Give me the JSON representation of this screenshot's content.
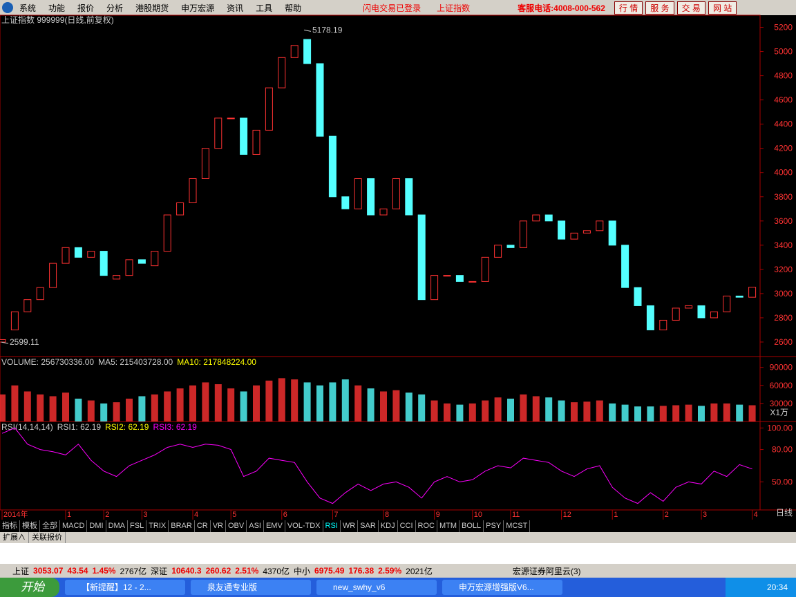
{
  "menu": {
    "items": [
      "系统",
      "功能",
      "报价",
      "分析",
      "港股期货",
      "申万宏源",
      "资讯",
      "工具",
      "帮助"
    ],
    "status": "闪电交易已登录",
    "index": "上证指数",
    "hotline": "客服电话:4008-000-562",
    "buttons": [
      "行 情",
      "服 务",
      "交 易",
      "网 站"
    ]
  },
  "chart_data": [
    {
      "type": "candlestick",
      "title": "上证指数 999999(日线,前复权)",
      "categories": [
        "2014年",
        null,
        null,
        null,
        null,
        "1",
        null,
        null,
        "2",
        null,
        null,
        "3",
        null,
        null,
        null,
        "4",
        null,
        null,
        "5",
        null,
        null,
        null,
        "6",
        null,
        null,
        null,
        "7",
        null,
        null,
        null,
        "8",
        null,
        null,
        null,
        "9",
        null,
        null,
        "10",
        null,
        null,
        "11",
        null,
        null,
        null,
        "12",
        null,
        null,
        null,
        "1",
        null,
        null,
        null,
        "2",
        null,
        null,
        "3",
        null,
        null,
        null,
        "4"
      ],
      "open": [
        2600,
        2700,
        2850,
        2950,
        3050,
        3250,
        3380,
        3300,
        3350,
        3120,
        3150,
        3280,
        3230,
        3350,
        3650,
        3750,
        3950,
        4200,
        4450,
        4450,
        4150,
        4350,
        4700,
        4950,
        5100,
        4900,
        4300,
        3800,
        3700,
        3950,
        3650,
        3700,
        3950,
        3650,
        2950,
        3150,
        3150,
        3100,
        3100,
        3300,
        3400,
        3380,
        3600,
        3650,
        3600,
        3450,
        3500,
        3520,
        3600,
        3400,
        3050,
        2900,
        2700,
        2780,
        2880,
        2900,
        2800,
        2850,
        2980,
        2970
      ],
      "close": [
        2620,
        2850,
        2950,
        3050,
        3250,
        3380,
        3300,
        3350,
        3150,
        3150,
        3280,
        3250,
        3350,
        3650,
        3750,
        3950,
        4200,
        4450,
        4450,
        4150,
        4350,
        4700,
        4950,
        5050,
        4900,
        4300,
        3800,
        3700,
        3950,
        3650,
        3700,
        3950,
        3650,
        2950,
        3150,
        3150,
        3100,
        3100,
        3300,
        3400,
        3380,
        3600,
        3650,
        3600,
        3450,
        3500,
        3520,
        3600,
        3400,
        3050,
        2900,
        2700,
        2780,
        2880,
        2900,
        2800,
        2850,
        2980,
        2970,
        3053
      ],
      "up_color": "#ff3232",
      "down_color": "#54ffff",
      "ylim": [
        2480,
        5300
      ],
      "yticks": [
        2600,
        2800,
        3000,
        3200,
        3400,
        3600,
        3800,
        4000,
        4200,
        4400,
        4600,
        4800,
        5000,
        5200
      ],
      "annotations": [
        {
          "text": "5178.19",
          "value": 5178.19
        },
        {
          "text": "2599.11",
          "value": 2599.11
        }
      ]
    },
    {
      "type": "bar",
      "legend": [
        "VOLUME: 256730336.00",
        "MA5: 215403728.00",
        "MA10: 217848224.00"
      ],
      "unit": "X1万",
      "values": [
        45000,
        60000,
        50000,
        45000,
        42000,
        48000,
        38000,
        35000,
        30000,
        32000,
        38000,
        42000,
        45000,
        50000,
        55000,
        60000,
        65000,
        62000,
        55000,
        50000,
        60000,
        68000,
        72000,
        70000,
        65000,
        60000,
        65000,
        70000,
        60000,
        55000,
        50000,
        52000,
        48000,
        45000,
        35000,
        30000,
        28000,
        30000,
        35000,
        40000,
        38000,
        45000,
        42000,
        40000,
        35000,
        32000,
        33000,
        35000,
        30000,
        28000,
        25000,
        25000,
        26000,
        27000,
        28000,
        26000,
        30000,
        30000,
        28000,
        27000
      ],
      "ylim": [
        0,
        108000
      ],
      "yticks": [
        30000,
        60000,
        90000
      ]
    },
    {
      "type": "line",
      "legend": [
        "RSI(14,14,14)",
        "RSI1: 62.19",
        "RSI2: 62.19",
        "RSI3: 62.19"
      ],
      "color": "#ff00ff",
      "values": [
        95,
        100,
        85,
        80,
        78,
        75,
        85,
        70,
        60,
        55,
        65,
        70,
        75,
        82,
        85,
        82,
        85,
        84,
        80,
        55,
        60,
        72,
        70,
        68,
        50,
        35,
        30,
        40,
        48,
        42,
        48,
        50,
        45,
        35,
        50,
        55,
        50,
        52,
        60,
        65,
        63,
        72,
        70,
        68,
        60,
        55,
        62,
        65,
        45,
        35,
        30,
        40,
        32,
        45,
        50,
        48,
        60,
        55,
        66,
        62
      ],
      "ylim": [
        24,
        106
      ],
      "yticks": [
        {
          "value": 50,
          "label": "50.00"
        },
        {
          "value": 80,
          "label": "80.00"
        },
        {
          "value": 100,
          "label": "100.00"
        }
      ]
    }
  ],
  "period": "日线",
  "tabs": [
    "指标",
    "模板",
    "全部",
    "MACD",
    "DMI",
    "DMA",
    "FSL",
    "TRIX",
    "BRAR",
    "CR",
    "VR",
    "OBV",
    "ASI",
    "EMV",
    "VOL-TDX",
    "RSI",
    "WR",
    "SAR",
    "KDJ",
    "CCI",
    "ROC",
    "MTM",
    "BOLL",
    "PSY",
    "MCST"
  ],
  "subtabs": [
    "扩展∧",
    "关联报价"
  ],
  "statusbar": [
    "上证",
    "3053.07",
    "43.54",
    "1.45%",
    "2767亿",
    "深证",
    "10640.3",
    "260.62",
    "2.51%",
    "4370亿",
    "中小",
    "6975.49",
    "176.38",
    "2.59%",
    "2021亿",
    "宏源证券阿里云(3)"
  ],
  "taskbar": {
    "start": "开始",
    "windows": [
      "【新提醒】12 - 2...",
      "泉友通专业版",
      "new_swhy_v6",
      "申万宏源增强版V6..."
    ],
    "clock": "20:34"
  }
}
